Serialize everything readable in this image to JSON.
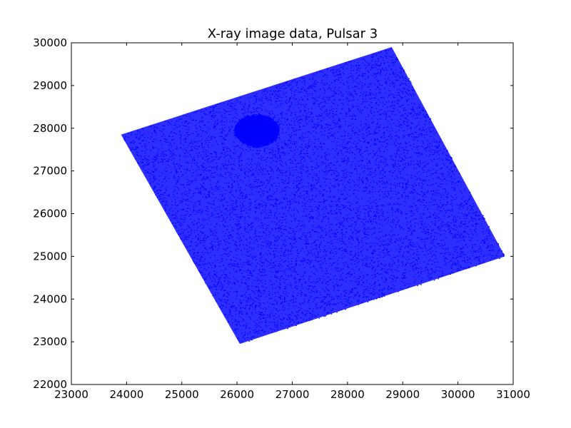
{
  "chart_data": {
    "type": "scatter",
    "title": "X-ray image data, Pulsar 3",
    "xlabel": "",
    "ylabel": "",
    "xlim": [
      23000,
      31000
    ],
    "ylim": [
      22000,
      30000
    ],
    "xticks": [
      23000,
      24000,
      25000,
      26000,
      27000,
      28000,
      29000,
      30000,
      31000
    ],
    "yticks": [
      22000,
      23000,
      24000,
      25000,
      26000,
      27000,
      28000,
      29000,
      30000
    ],
    "xtick_labels": [
      "23000",
      "24000",
      "25000",
      "26000",
      "27000",
      "28000",
      "29000",
      "30000",
      "31000"
    ],
    "ytick_labels": [
      "22000",
      "23000",
      "24000",
      "25000",
      "26000",
      "27000",
      "28000",
      "29000",
      "30000"
    ],
    "grid": false,
    "marker_color": "#0000ff",
    "region": {
      "shape": "rotated-square",
      "corners": [
        [
          28800,
          29900
        ],
        [
          30850,
          25000
        ],
        [
          26050,
          22950
        ],
        [
          23900,
          27850
        ]
      ]
    },
    "hotspot": {
      "center": [
        26350,
        27950
      ],
      "radius": 400
    }
  }
}
